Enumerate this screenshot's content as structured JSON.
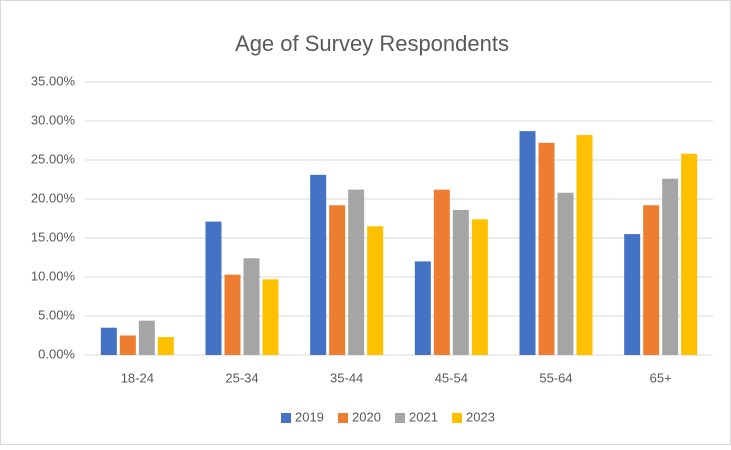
{
  "chart_data": {
    "type": "bar",
    "title": "Age of Survey Respondents",
    "categories": [
      "18-24",
      "25-34",
      "35-44",
      "45-54",
      "55-64",
      "65+"
    ],
    "series": [
      {
        "name": "2019",
        "color": "#4472c4",
        "values": [
          3.5,
          17.1,
          23.1,
          12.0,
          28.7,
          15.5
        ]
      },
      {
        "name": "2020",
        "color": "#ed7d31",
        "values": [
          2.5,
          10.3,
          19.2,
          21.2,
          27.2,
          19.2
        ]
      },
      {
        "name": "2021",
        "color": "#a5a5a5",
        "values": [
          4.4,
          12.4,
          21.2,
          18.6,
          20.8,
          22.6
        ]
      },
      {
        "name": "2023",
        "color": "#ffc000",
        "values": [
          2.3,
          9.7,
          16.5,
          17.4,
          28.2,
          25.8
        ]
      }
    ],
    "ylim": [
      0,
      35
    ],
    "yticks": [
      {
        "value": 0,
        "label": "0.00%"
      },
      {
        "value": 5,
        "label": "5.00%"
      },
      {
        "value": 10,
        "label": "10.00%"
      },
      {
        "value": 15,
        "label": "15.00%"
      },
      {
        "value": 20,
        "label": "20.00%"
      },
      {
        "value": 25,
        "label": "25.00%"
      },
      {
        "value": 30,
        "label": "30.00%"
      },
      {
        "value": 35,
        "label": "35.00%"
      }
    ],
    "grid": true,
    "legend": "bottom"
  }
}
